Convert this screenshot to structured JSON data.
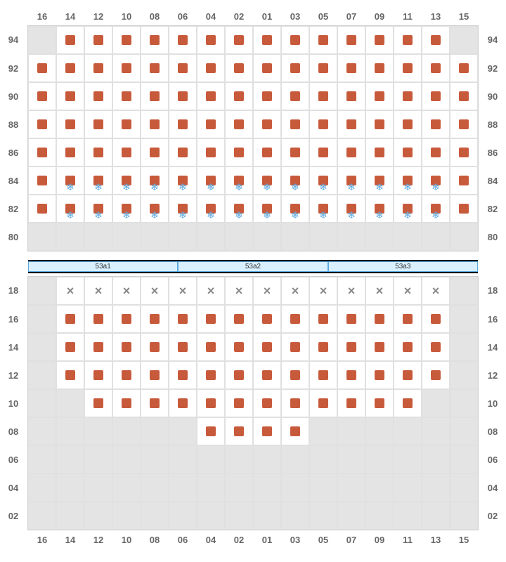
{
  "columns": [
    "16",
    "14",
    "12",
    "10",
    "08",
    "06",
    "04",
    "02",
    "01",
    "03",
    "05",
    "07",
    "09",
    "11",
    "13",
    "15"
  ],
  "grids": [
    {
      "rowLabels": [
        "94",
        "92",
        "90",
        "88",
        "86",
        "84",
        "82",
        "80"
      ],
      "cells": [
        [
          {
            "t": "g"
          },
          {
            "t": "s"
          },
          {
            "t": "s"
          },
          {
            "t": "s"
          },
          {
            "t": "s"
          },
          {
            "t": "s"
          },
          {
            "t": "s"
          },
          {
            "t": "s"
          },
          {
            "t": "s"
          },
          {
            "t": "s"
          },
          {
            "t": "s"
          },
          {
            "t": "s"
          },
          {
            "t": "s"
          },
          {
            "t": "s"
          },
          {
            "t": "s"
          },
          {
            "t": "g"
          }
        ],
        [
          {
            "t": "s"
          },
          {
            "t": "s"
          },
          {
            "t": "s"
          },
          {
            "t": "s"
          },
          {
            "t": "s"
          },
          {
            "t": "s"
          },
          {
            "t": "s"
          },
          {
            "t": "s"
          },
          {
            "t": "s"
          },
          {
            "t": "s"
          },
          {
            "t": "s"
          },
          {
            "t": "s"
          },
          {
            "t": "s"
          },
          {
            "t": "s"
          },
          {
            "t": "s"
          },
          {
            "t": "s"
          }
        ],
        [
          {
            "t": "s"
          },
          {
            "t": "s"
          },
          {
            "t": "s"
          },
          {
            "t": "s"
          },
          {
            "t": "s"
          },
          {
            "t": "s"
          },
          {
            "t": "s"
          },
          {
            "t": "s"
          },
          {
            "t": "s"
          },
          {
            "t": "s"
          },
          {
            "t": "s"
          },
          {
            "t": "s"
          },
          {
            "t": "s"
          },
          {
            "t": "s"
          },
          {
            "t": "s"
          },
          {
            "t": "s"
          }
        ],
        [
          {
            "t": "s"
          },
          {
            "t": "s"
          },
          {
            "t": "s"
          },
          {
            "t": "s"
          },
          {
            "t": "s"
          },
          {
            "t": "s"
          },
          {
            "t": "s"
          },
          {
            "t": "s"
          },
          {
            "t": "s"
          },
          {
            "t": "s"
          },
          {
            "t": "s"
          },
          {
            "t": "s"
          },
          {
            "t": "s"
          },
          {
            "t": "s"
          },
          {
            "t": "s"
          },
          {
            "t": "s"
          }
        ],
        [
          {
            "t": "s"
          },
          {
            "t": "s"
          },
          {
            "t": "s"
          },
          {
            "t": "s"
          },
          {
            "t": "s"
          },
          {
            "t": "s"
          },
          {
            "t": "s"
          },
          {
            "t": "s"
          },
          {
            "t": "s"
          },
          {
            "t": "s"
          },
          {
            "t": "s"
          },
          {
            "t": "s"
          },
          {
            "t": "s"
          },
          {
            "t": "s"
          },
          {
            "t": "s"
          },
          {
            "t": "s"
          }
        ],
        [
          {
            "t": "s"
          },
          {
            "t": "sf"
          },
          {
            "t": "sf"
          },
          {
            "t": "sf"
          },
          {
            "t": "sf"
          },
          {
            "t": "sf"
          },
          {
            "t": "sf"
          },
          {
            "t": "sf"
          },
          {
            "t": "sf"
          },
          {
            "t": "sf"
          },
          {
            "t": "sf"
          },
          {
            "t": "sf"
          },
          {
            "t": "sf"
          },
          {
            "t": "sf"
          },
          {
            "t": "sf"
          },
          {
            "t": "s"
          }
        ],
        [
          {
            "t": "s"
          },
          {
            "t": "sf"
          },
          {
            "t": "sf"
          },
          {
            "t": "sf"
          },
          {
            "t": "sf"
          },
          {
            "t": "sf"
          },
          {
            "t": "sf"
          },
          {
            "t": "sf"
          },
          {
            "t": "sf"
          },
          {
            "t": "sf"
          },
          {
            "t": "sf"
          },
          {
            "t": "sf"
          },
          {
            "t": "sf"
          },
          {
            "t": "sf"
          },
          {
            "t": "sf"
          },
          {
            "t": "s"
          }
        ],
        [
          {
            "t": "g"
          },
          {
            "t": "g"
          },
          {
            "t": "g"
          },
          {
            "t": "g"
          },
          {
            "t": "g"
          },
          {
            "t": "g"
          },
          {
            "t": "g"
          },
          {
            "t": "g"
          },
          {
            "t": "g"
          },
          {
            "t": "g"
          },
          {
            "t": "g"
          },
          {
            "t": "g"
          },
          {
            "t": "g"
          },
          {
            "t": "g"
          },
          {
            "t": "g"
          },
          {
            "t": "g"
          }
        ]
      ]
    },
    {
      "rowLabels": [
        "18",
        "16",
        "14",
        "12",
        "10",
        "08",
        "06",
        "04",
        "02"
      ],
      "cells": [
        [
          {
            "t": "g"
          },
          {
            "t": "x"
          },
          {
            "t": "x"
          },
          {
            "t": "x"
          },
          {
            "t": "x"
          },
          {
            "t": "x"
          },
          {
            "t": "x"
          },
          {
            "t": "x"
          },
          {
            "t": "x"
          },
          {
            "t": "x"
          },
          {
            "t": "x"
          },
          {
            "t": "x"
          },
          {
            "t": "x"
          },
          {
            "t": "x"
          },
          {
            "t": "x"
          },
          {
            "t": "g"
          }
        ],
        [
          {
            "t": "g"
          },
          {
            "t": "s"
          },
          {
            "t": "s"
          },
          {
            "t": "s"
          },
          {
            "t": "s"
          },
          {
            "t": "s"
          },
          {
            "t": "s"
          },
          {
            "t": "s"
          },
          {
            "t": "s"
          },
          {
            "t": "s"
          },
          {
            "t": "s"
          },
          {
            "t": "s"
          },
          {
            "t": "s"
          },
          {
            "t": "s"
          },
          {
            "t": "s"
          },
          {
            "t": "g"
          }
        ],
        [
          {
            "t": "g"
          },
          {
            "t": "s"
          },
          {
            "t": "s"
          },
          {
            "t": "s"
          },
          {
            "t": "s"
          },
          {
            "t": "s"
          },
          {
            "t": "s"
          },
          {
            "t": "s"
          },
          {
            "t": "s"
          },
          {
            "t": "s"
          },
          {
            "t": "s"
          },
          {
            "t": "s"
          },
          {
            "t": "s"
          },
          {
            "t": "s"
          },
          {
            "t": "s"
          },
          {
            "t": "g"
          }
        ],
        [
          {
            "t": "g"
          },
          {
            "t": "s"
          },
          {
            "t": "s"
          },
          {
            "t": "s"
          },
          {
            "t": "s"
          },
          {
            "t": "s"
          },
          {
            "t": "s"
          },
          {
            "t": "s"
          },
          {
            "t": "s"
          },
          {
            "t": "s"
          },
          {
            "t": "s"
          },
          {
            "t": "s"
          },
          {
            "t": "s"
          },
          {
            "t": "s"
          },
          {
            "t": "s"
          },
          {
            "t": "g"
          }
        ],
        [
          {
            "t": "g"
          },
          {
            "t": "g"
          },
          {
            "t": "s"
          },
          {
            "t": "s"
          },
          {
            "t": "s"
          },
          {
            "t": "s"
          },
          {
            "t": "s"
          },
          {
            "t": "s"
          },
          {
            "t": "s"
          },
          {
            "t": "s"
          },
          {
            "t": "s"
          },
          {
            "t": "s"
          },
          {
            "t": "s"
          },
          {
            "t": "s"
          },
          {
            "t": "g"
          },
          {
            "t": "g"
          }
        ],
        [
          {
            "t": "g"
          },
          {
            "t": "g"
          },
          {
            "t": "g"
          },
          {
            "t": "g"
          },
          {
            "t": "g"
          },
          {
            "t": "g"
          },
          {
            "t": "s"
          },
          {
            "t": "s"
          },
          {
            "t": "s"
          },
          {
            "t": "s"
          },
          {
            "t": "g"
          },
          {
            "t": "g"
          },
          {
            "t": "g"
          },
          {
            "t": "g"
          },
          {
            "t": "g"
          },
          {
            "t": "g"
          }
        ],
        [
          {
            "t": "g"
          },
          {
            "t": "g"
          },
          {
            "t": "g"
          },
          {
            "t": "g"
          },
          {
            "t": "g"
          },
          {
            "t": "g"
          },
          {
            "t": "g"
          },
          {
            "t": "g"
          },
          {
            "t": "g"
          },
          {
            "t": "g"
          },
          {
            "t": "g"
          },
          {
            "t": "g"
          },
          {
            "t": "g"
          },
          {
            "t": "g"
          },
          {
            "t": "g"
          },
          {
            "t": "g"
          }
        ],
        [
          {
            "t": "g"
          },
          {
            "t": "g"
          },
          {
            "t": "g"
          },
          {
            "t": "g"
          },
          {
            "t": "g"
          },
          {
            "t": "g"
          },
          {
            "t": "g"
          },
          {
            "t": "g"
          },
          {
            "t": "g"
          },
          {
            "t": "g"
          },
          {
            "t": "g"
          },
          {
            "t": "g"
          },
          {
            "t": "g"
          },
          {
            "t": "g"
          },
          {
            "t": "g"
          },
          {
            "t": "g"
          }
        ],
        [
          {
            "t": "g"
          },
          {
            "t": "g"
          },
          {
            "t": "g"
          },
          {
            "t": "g"
          },
          {
            "t": "g"
          },
          {
            "t": "g"
          },
          {
            "t": "g"
          },
          {
            "t": "g"
          },
          {
            "t": "g"
          },
          {
            "t": "g"
          },
          {
            "t": "g"
          },
          {
            "t": "g"
          },
          {
            "t": "g"
          },
          {
            "t": "g"
          },
          {
            "t": "g"
          },
          {
            "t": "g"
          }
        ]
      ]
    }
  ],
  "dividerSections": [
    "53a1",
    "53a2",
    "53a3"
  ],
  "colors": {
    "seat": "#c85a3c",
    "snowflake": "#5aa8e0",
    "x": "#888888",
    "gray": "#e4e4e4",
    "dividerBg": "#d8f0ff"
  }
}
